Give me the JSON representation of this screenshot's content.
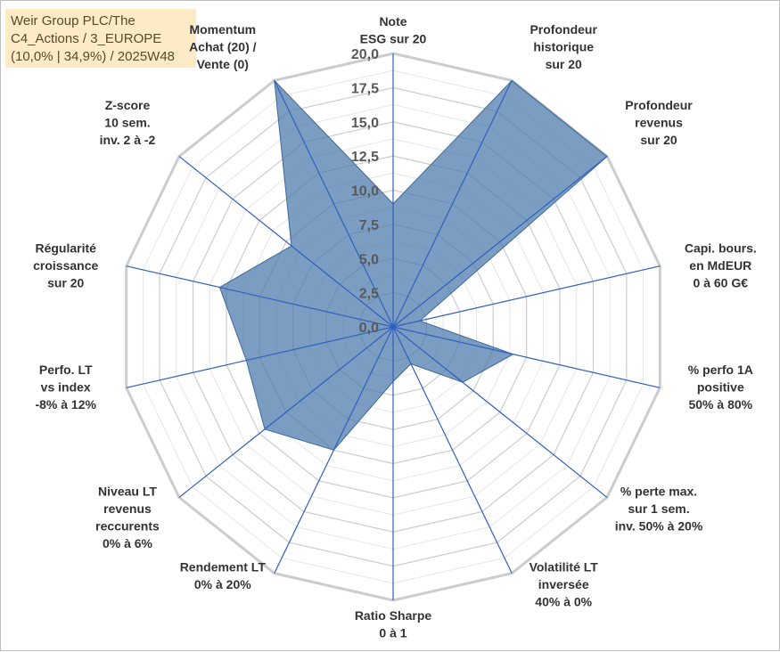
{
  "chart_data": {
    "type": "radar",
    "title_lines": [
      "Weir Group PLC/The",
      "C4_Actions / 3_EUROPE",
      "(10,0% | 34,9%) / 2025W48"
    ],
    "rlim": [
      0,
      20
    ],
    "ticks": [
      "0,0",
      "2,5",
      "5,0",
      "7,5",
      "10,0",
      "12,5",
      "15,0",
      "17,5",
      "20,0"
    ],
    "tick_values": [
      0,
      2.5,
      5,
      7.5,
      10,
      12.5,
      15,
      17.5,
      20
    ],
    "categories": [
      {
        "lines": [
          "Note",
          "ESG sur 20"
        ]
      },
      {
        "lines": [
          "Profondeur",
          "historique",
          "sur 20"
        ]
      },
      {
        "lines": [
          "Profondeur",
          "revenus",
          "sur 20"
        ]
      },
      {
        "lines": [
          "Capi. bours.",
          "en MdEUR",
          "0 à 60 G€"
        ]
      },
      {
        "lines": [
          "% perfo 1A",
          "positive",
          "50% à 80%"
        ]
      },
      {
        "lines": [
          "% perte max.",
          "sur 1 sem.",
          "inv. 50% à 20%"
        ]
      },
      {
        "lines": [
          "Volatilité LT",
          "inversée",
          "40% à 0%"
        ]
      },
      {
        "lines": [
          "Ratio Sharpe",
          "0 à 1"
        ]
      },
      {
        "lines": [
          "Rendement LT",
          "0% à 20%"
        ]
      },
      {
        "lines": [
          "Niveau LT",
          "revenus",
          "reccurents",
          "0% à 6%"
        ]
      },
      {
        "lines": [
          "Perfo. LT",
          "vs index",
          "-8% à 12%"
        ]
      },
      {
        "lines": [
          "Régularité",
          "croissance",
          "sur 20"
        ]
      },
      {
        "lines": [
          "Z-score",
          "10 sem.",
          "inv. 2 à -2"
        ]
      },
      {
        "lines": [
          "Momentum",
          "Achat (20) /",
          "Vente (0)"
        ]
      }
    ],
    "series": [
      {
        "values": [
          9.0,
          20.0,
          20.0,
          2.0,
          9.0,
          6.5,
          3.0,
          4.0,
          10.0,
          12.0,
          11.0,
          13.0,
          9.5,
          20.0
        ],
        "color": "#4f7cac"
      }
    ],
    "grid": true
  }
}
